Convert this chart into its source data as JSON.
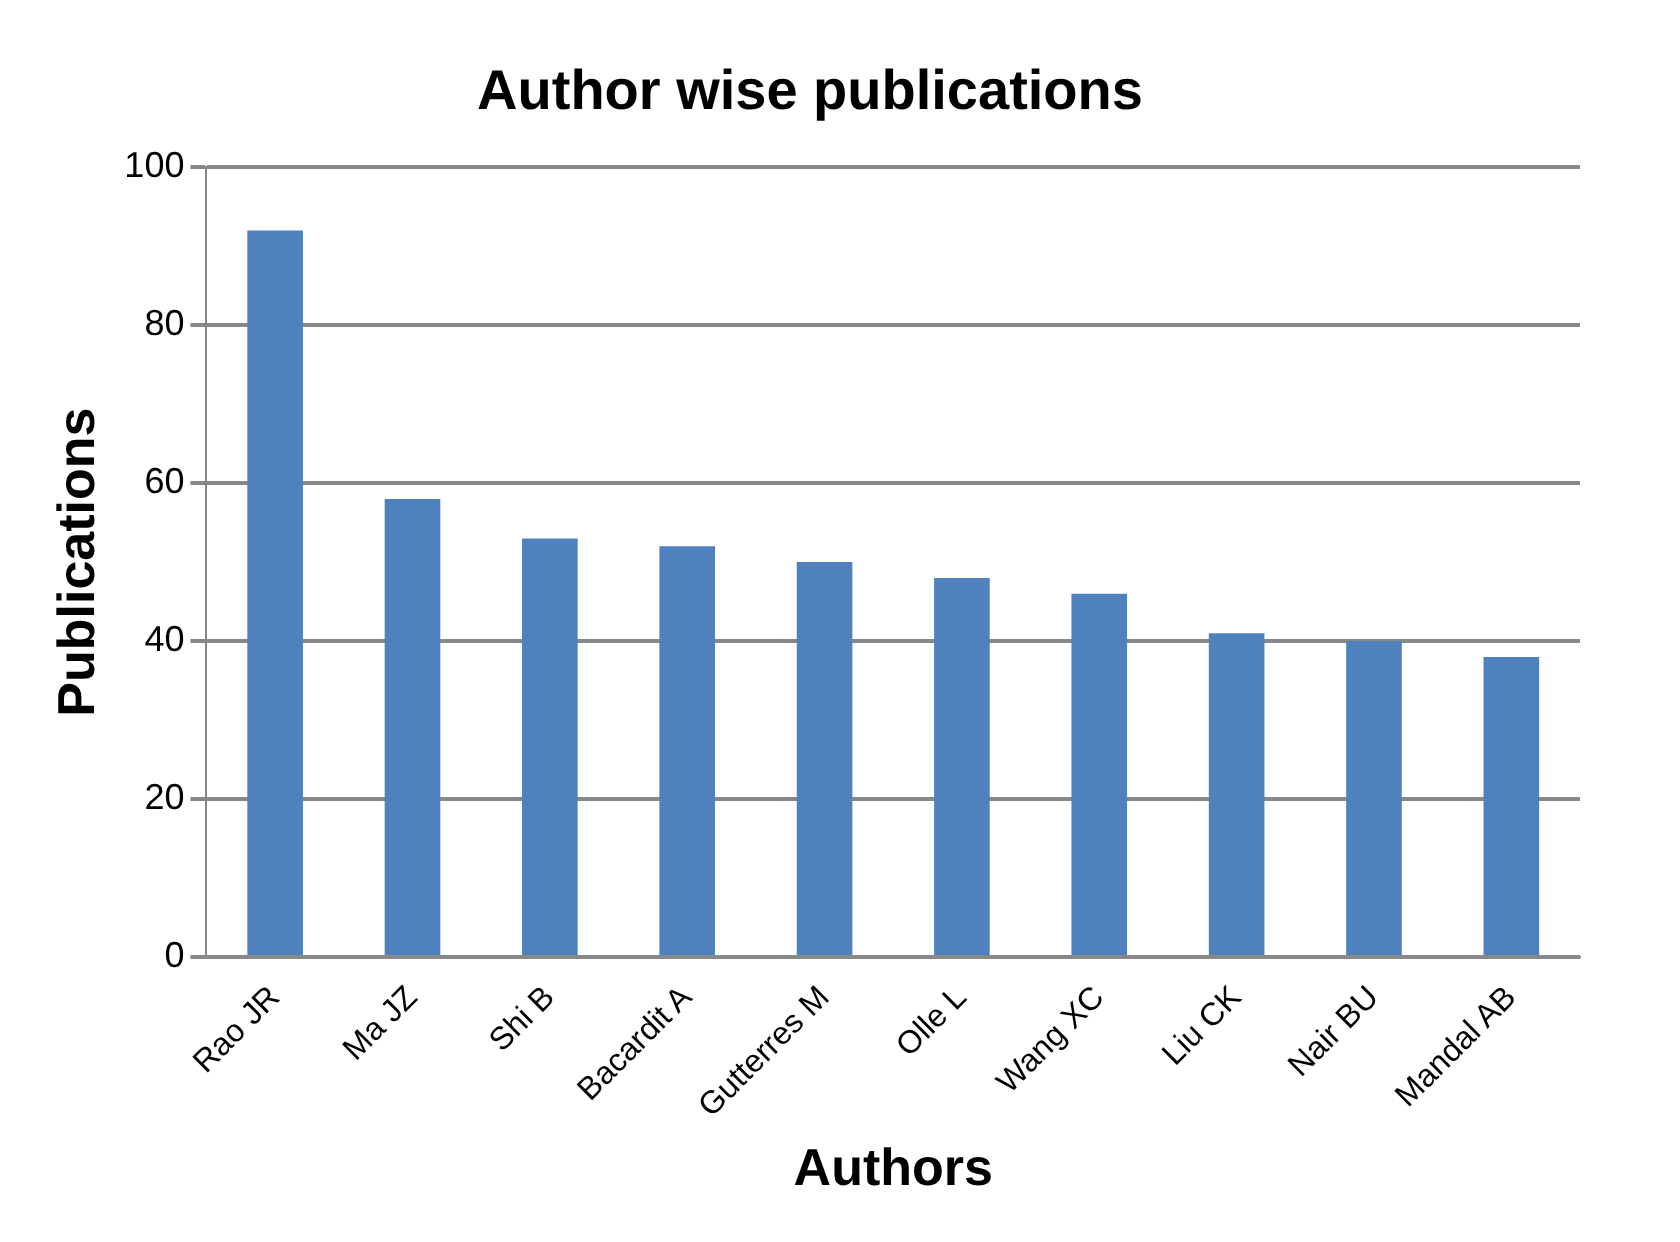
{
  "chart_data": {
    "type": "bar",
    "title": "Author wise publications",
    "xlabel": "Authors",
    "ylabel": "Publications",
    "categories": [
      "Rao JR",
      "Ma JZ",
      "Shi B",
      "Bacardit A",
      "Gutterres M",
      "Olle L",
      "Wang XC",
      "Liu CK",
      "Nair BU",
      "Mandal AB"
    ],
    "values": [
      92,
      58,
      53,
      52,
      50,
      48,
      46,
      41,
      40,
      38
    ],
    "color": "#4f81bd",
    "ylim": [
      0,
      100
    ],
    "yticks": [
      0,
      20,
      40,
      60,
      80,
      100
    ],
    "grid": "y",
    "legend": false
  }
}
